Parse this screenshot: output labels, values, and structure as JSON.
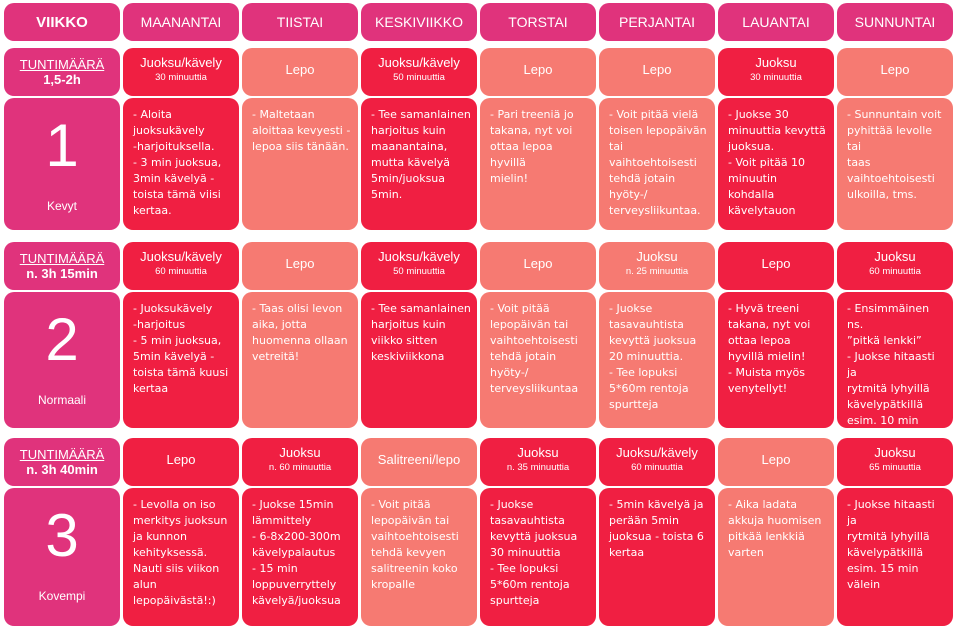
{
  "header": {
    "week": "VIIKKO",
    "days": [
      "MAANANTAI",
      "TIISTAI",
      "KESKIVIIKKO",
      "TORSTAI",
      "PERJANTAI",
      "LAUANTAI",
      "SUNNUNTAI"
    ]
  },
  "weeks": [
    {
      "info_label": "TUNTIMÄÄRÄ",
      "info_value": "1,5-2h",
      "number": "1",
      "level": "Kevyt",
      "days": [
        {
          "title": "Juoksu/kävely",
          "sub": "30 minuuttia",
          "desc": "- Aloita\njuoksukävely\n-harjoituksella.\n- 3 min juoksua,\n3min kävelyä -\ntoista tämä viisi\nkertaa."
        },
        {
          "title": "Lepo",
          "sub": "",
          "desc": "- Maltetaan\naloittaa kevyesti -\nlepoa siis tänään."
        },
        {
          "title": "Juoksu/kävely",
          "sub": "50 minuuttia",
          "desc": "- Tee samanlainen\nharjoitus kuin\nmaanantaina,\nmutta kävelyä\n5min/juoksua\n5min."
        },
        {
          "title": "Lepo",
          "sub": "",
          "desc": "- Pari treeniä jo\ntakana, nyt voi\nottaa lepoa hyvillä\nmielin!"
        },
        {
          "title": "Lepo",
          "sub": "",
          "desc": "- Voit pitää vielä\ntoisen lepopäivän\ntai\nvaihtoehtoisesti\ntehdä jotain\nhyöty-/\nterveysliikuntaa."
        },
        {
          "title": "Juoksu",
          "sub": "30 minuuttia",
          "desc": "- Juokse 30\nminuuttia kevyttä\njuoksua.\n- Voit pitää 10\nminuutin\nkohdalla\nkävelytauon"
        },
        {
          "title": "Lepo",
          "sub": "",
          "desc": "- Sunnuntain voit\npyhittää levolle tai\ntaas\nvaihtoehtoisesti\nulkoilla, tms."
        }
      ]
    },
    {
      "info_label": "TUNTIMÄÄRÄ",
      "info_value": "n. 3h 15min",
      "number": "2",
      "level": "Normaali",
      "days": [
        {
          "title": "Juoksu/kävely",
          "sub": "60 minuuttia",
          "desc": "- Juoksukävely\n-harjoitus\n- 5 min juoksua,\n5min kävelyä -\ntoista tämä kuusi\nkertaa"
        },
        {
          "title": "Lepo",
          "sub": "",
          "desc": "- Taas olisi levon\naika, jotta\nhuomenna ollaan\nvetreitä!"
        },
        {
          "title": "Juoksu/kävely",
          "sub": "50 minuuttia",
          "desc": "- Tee samanlainen\nharjoitus kuin\nviikko sitten\nkeskiviikkona"
        },
        {
          "title": "Lepo",
          "sub": "",
          "desc": "- Voit pitää\nlepopäivän tai\nvaihtoehtoisesti\ntehdä jotain\nhyöty-/\nterveysliikuntaa"
        },
        {
          "title": "Juoksu",
          "sub": "n. 25 minuuttia",
          "desc": "- Juokse\n  tasavauhtista\n  kevyttä juoksua\n  20 minuuttia.\n- Tee lopuksi\n  5*60m rentoja\n  spurtteja"
        },
        {
          "title": "Lepo",
          "sub": "",
          "desc": "- Hyvä treeni\n  takana, nyt voi\n  ottaa lepoa\n  hyvillä mielin!\n- Muista myös\n  venytellyt!"
        },
        {
          "title": "Juoksu",
          "sub": "60 minuuttia",
          "desc": "- Ensimmäinen ns.\n  ”pitkä lenkki”\n- Juokse hitaasti ja\n  rytmitä lyhyillä\n  kävelypätkillä\n  esim. 10 min\n  välein"
        }
      ]
    },
    {
      "info_label": "TUNTIMÄÄRÄ",
      "info_value": "n. 3h 40min",
      "number": "3",
      "level": "Kovempi",
      "days": [
        {
          "title": "Lepo",
          "sub": "",
          "desc": "- Levolla on iso\nmerkitys juoksun\nja kunnon\nkehityksessä.\nNauti siis viikon\nalun\nlepopäivästä!:)"
        },
        {
          "title": "Juoksu",
          "sub": "n. 60 minuuttia",
          "desc": "- Juokse 15min\n  lämmittely\n- 6-8x200-300m\n  kävelypalautus\n- 15 min\n  loppuverryttely\n  kävelyä/juoksua"
        },
        {
          "title": "Salitreeni/lepo",
          "sub": "",
          "desc": "- Voit pitää\nlepopäivän tai\nvaihtoehtoisesti\ntehdä kevyen\nsalitreenin koko\nkropalle"
        },
        {
          "title": "Juoksu",
          "sub": "n. 35 minuuttia",
          "desc": "- Juokse\n  tasavauhtista\n  kevyttä juoksua\n  30 minuuttia\n- Tee lopuksi\n  5*60m rentoja\n  spurtteja"
        },
        {
          "title": "Juoksu/kävely",
          "sub": "60 minuuttia",
          "desc": "- 5min kävelyä ja\nperään 5min\njuoksua - toista 6\nkertaa"
        },
        {
          "title": "Lepo",
          "sub": "",
          "desc": "- Aika ladata\nakkuja huomisen\npitkää lenkkiä\nvarten"
        },
        {
          "title": "Juoksu",
          "sub": "65 minuuttia",
          "desc": "- Juokse hitaasti ja\nrytmitä lyhyillä\nkävelypätkillä\nesim. 15 min\nvälein"
        }
      ]
    }
  ],
  "colors": {
    "header": "#e0337c",
    "run_day": "#f01f42",
    "rest_day": "#f67a72",
    "week_label": "#e0337c"
  }
}
